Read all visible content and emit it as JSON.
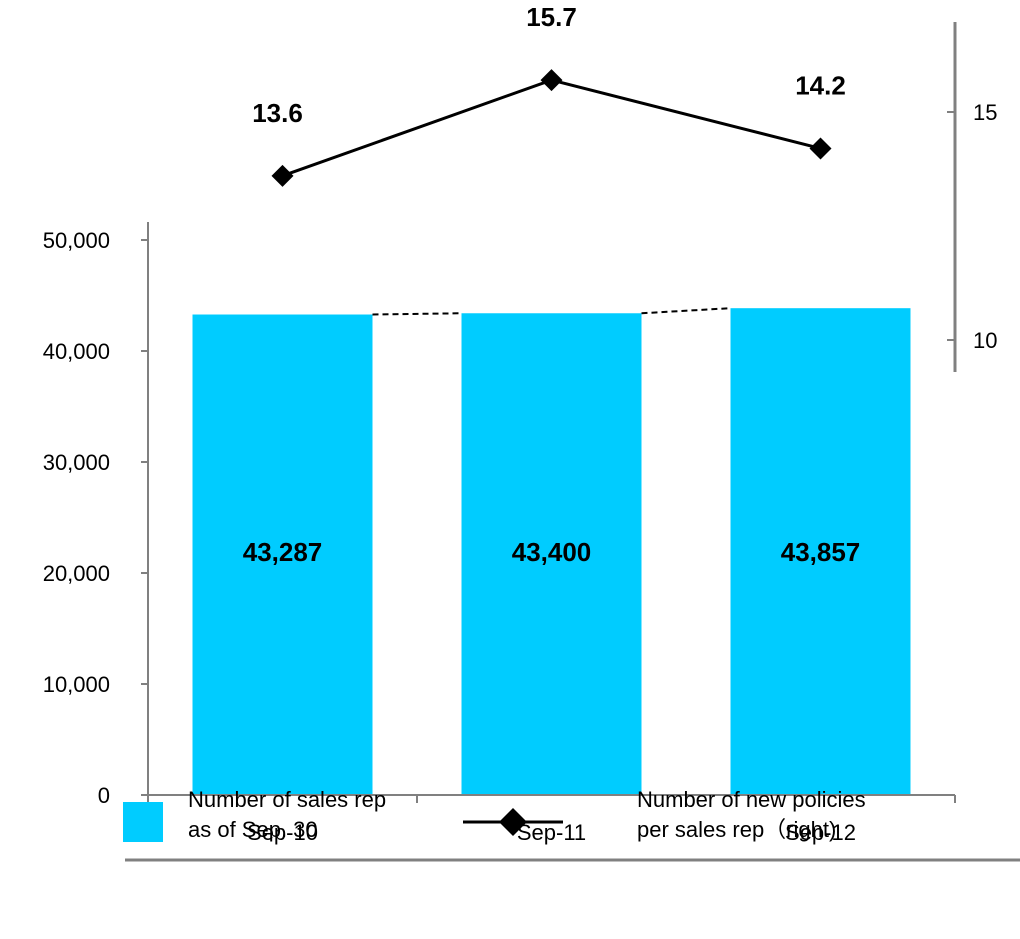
{
  "chart_data": {
    "type": "bar",
    "categories": [
      "Sep-10",
      "Sep-11",
      "Sep-12"
    ],
    "series": [
      {
        "name": "Number of sales rep as of Sep. 30",
        "kind": "bar",
        "axis": "left",
        "color": "#00CCFF",
        "values": [
          43287,
          43400,
          43857
        ],
        "labels": [
          "43,287",
          "43,400",
          "43,857"
        ]
      },
      {
        "name": "Number of new policies per sales rep（right)",
        "kind": "line",
        "axis": "right",
        "color": "#000000",
        "marker": "diamond",
        "values": [
          13.6,
          15.7,
          14.2
        ],
        "labels": [
          "13.6",
          "15.7",
          "14.2"
        ]
      }
    ],
    "y_left": {
      "ylim": [
        0,
        50000
      ],
      "ticks": [
        0,
        10000,
        20000,
        30000,
        40000,
        50000
      ],
      "tick_labels": [
        "0",
        "10,000",
        "20,000",
        "30,000",
        "40,000",
        "50,000"
      ]
    },
    "y_right": {
      "ticks": [
        10,
        15
      ],
      "tick_labels": [
        "10",
        "15"
      ]
    },
    "legend": {
      "position": "bottom",
      "items": [
        {
          "lines": [
            "Number of sales rep",
            "as of Sep. 30"
          ],
          "symbol": "bar"
        },
        {
          "lines": [
            "Number of new policies",
            "per sales rep（right)"
          ],
          "symbol": "line-diamond"
        }
      ]
    }
  }
}
